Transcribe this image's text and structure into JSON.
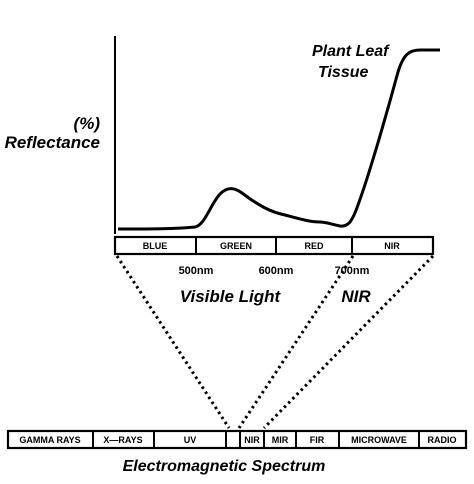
{
  "curve": {
    "label_line1": "Plant Leaf",
    "label_line2": "Tissue",
    "y_label_line1": "(%)",
    "y_label_line2": "Reflectance"
  },
  "visible_bar": {
    "bands": [
      "BLUE",
      "GREEN",
      "RED",
      "NIR"
    ]
  },
  "wavelength_ticks": [
    "500nm",
    "600nm",
    "700nm"
  ],
  "region_labels": {
    "visible": "Visible Light",
    "nir": "NIR"
  },
  "spectrum_bar": {
    "bands": [
      "GAMMA RAYS",
      "X—RAYS",
      "UV",
      "",
      "NIR",
      "MIR",
      "FIR",
      "MICROWAVE",
      "RADIO"
    ]
  },
  "spectrum_title": "Electromagnetic Spectrum",
  "colors": {
    "ink": "#000000",
    "background": "#ffffff"
  }
}
